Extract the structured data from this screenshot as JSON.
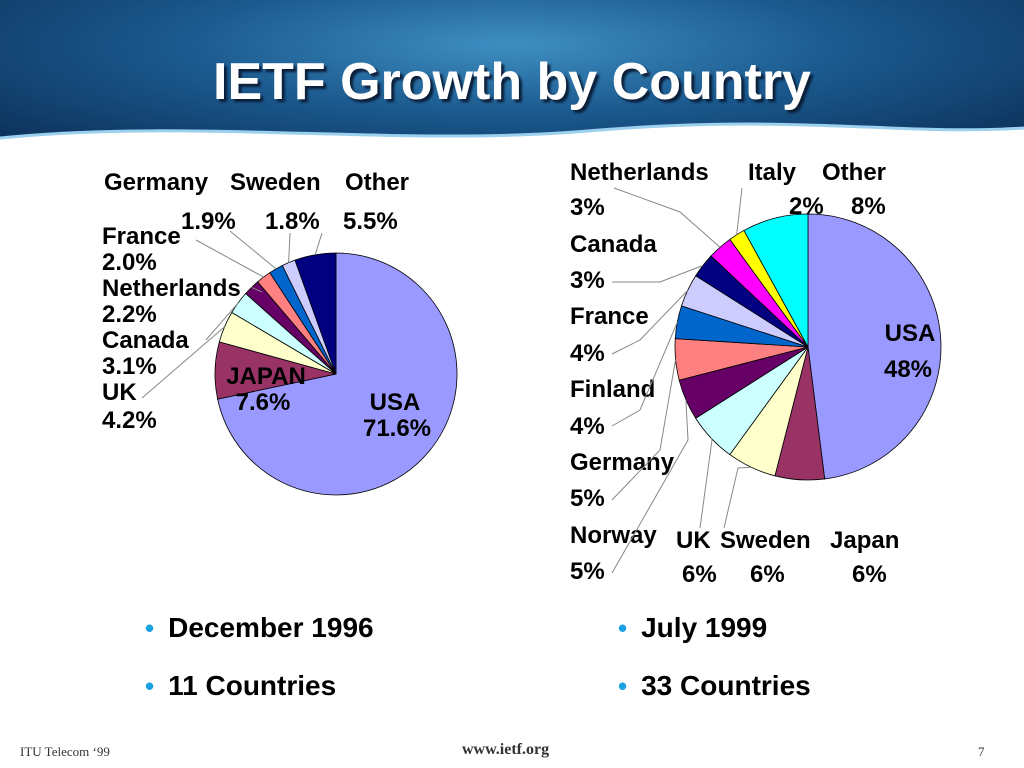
{
  "title": "IETF Growth by Country",
  "chart_data": [
    {
      "type": "pie",
      "unit": "%",
      "slices": [
        {
          "name": "USA",
          "value": 71.6,
          "label": "USA",
          "value_label": "71.6%",
          "color": "#9999ff"
        },
        {
          "name": "JAPAN",
          "value": 7.6,
          "label": "JAPAN",
          "value_label": "7.6%",
          "color": "#993366"
        },
        {
          "name": "UK",
          "value": 4.2,
          "label": "UK",
          "value_label": "4.2%",
          "color": "#ffffcc"
        },
        {
          "name": "Canada",
          "value": 3.1,
          "label": "Canada",
          "value_label": "3.1%",
          "color": "#ccffff"
        },
        {
          "name": "Netherlands",
          "value": 2.2,
          "label": "Netherlands",
          "value_label": "2.2%",
          "color": "#660066"
        },
        {
          "name": "France",
          "value": 2.0,
          "label": "France",
          "value_label": "2.0%",
          "color": "#ff8080"
        },
        {
          "name": "Germany",
          "value": 1.9,
          "label": "Germany",
          "value_label": "1.9%",
          "color": "#0066cc"
        },
        {
          "name": "Sweden",
          "value": 1.8,
          "label": "Sweden",
          "value_label": "1.8%",
          "color": "#ccccff"
        },
        {
          "name": "Other",
          "value": 5.5,
          "label": "Other",
          "value_label": "5.5%",
          "color": "#000080"
        }
      ]
    },
    {
      "type": "pie",
      "unit": "%",
      "slices": [
        {
          "name": "USA",
          "value": 48,
          "label": "USA",
          "value_label": "48%",
          "color": "#9999ff"
        },
        {
          "name": "Japan",
          "value": 6,
          "label": "Japan",
          "value_label": "6%",
          "color": "#993366"
        },
        {
          "name": "Sweden",
          "value": 6,
          "label": "Sweden",
          "value_label": "6%",
          "color": "#ffffcc"
        },
        {
          "name": "UK",
          "value": 6,
          "label": "UK",
          "value_label": "6%",
          "color": "#ccffff"
        },
        {
          "name": "Norway",
          "value": 5,
          "label": "Norway",
          "value_label": "5%",
          "color": "#660066"
        },
        {
          "name": "Germany",
          "value": 5,
          "label": "Germany",
          "value_label": "5%",
          "color": "#ff8080"
        },
        {
          "name": "Finland",
          "value": 4,
          "label": "Finland",
          "value_label": "4%",
          "color": "#0066cc"
        },
        {
          "name": "France",
          "value": 4,
          "label": "France",
          "value_label": "4%",
          "color": "#ccccff"
        },
        {
          "name": "Canada",
          "value": 3,
          "label": "Canada",
          "value_label": "3%",
          "color": "#000080"
        },
        {
          "name": "Netherlands",
          "value": 3,
          "label": "Netherlands",
          "value_label": "3%",
          "color": "#ff00ff"
        },
        {
          "name": "Italy",
          "value": 2,
          "label": "Italy",
          "value_label": "2%",
          "color": "#ffff00"
        },
        {
          "name": "Other",
          "value": 8,
          "label": "Other",
          "value_label": "8%",
          "color": "#00ffff"
        }
      ]
    }
  ],
  "bullets_left": [
    "December 1996",
    "11 Countries"
  ],
  "bullets_right": [
    "July 1999",
    "33 Countries"
  ],
  "footer": {
    "left": "ITU Telecom ‘99",
    "center": "www.ietf.org",
    "right": "7"
  },
  "colors": {
    "bullet": "#1aa1e0",
    "header_dark": "#0b2d55",
    "header_light": "#3f8fc2"
  }
}
